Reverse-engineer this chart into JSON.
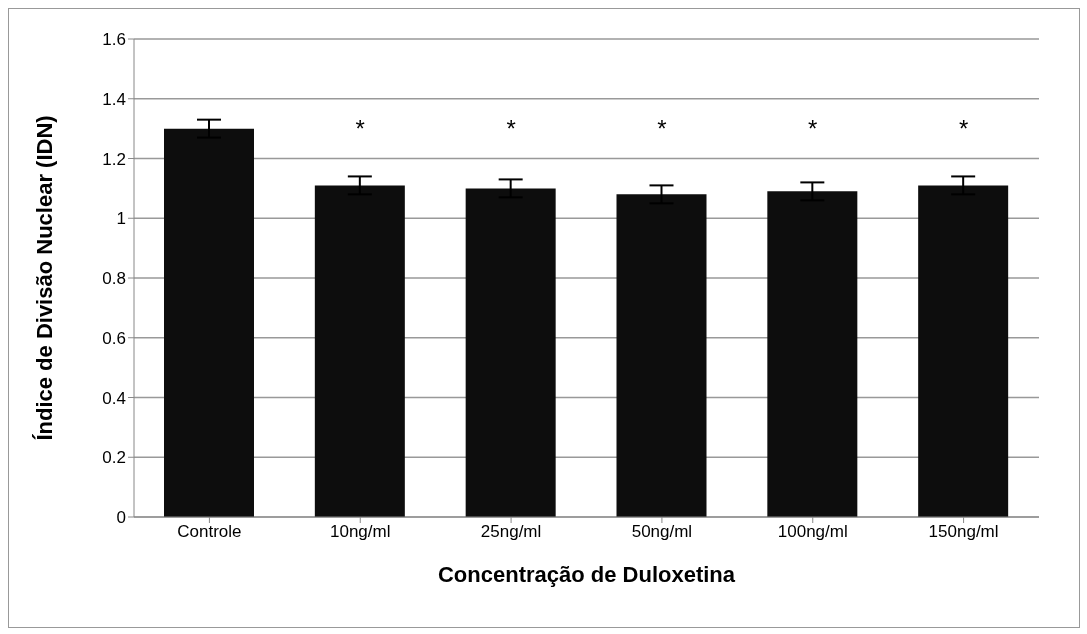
{
  "chart_data": {
    "type": "bar",
    "xlabel": "Concentração de Duloxetina",
    "ylabel": "Índice de Divisão Nuclear (IDN)",
    "categories": [
      "Controle",
      "10ng/ml",
      "25ng/ml",
      "50ng/ml",
      "100ng/ml",
      "150ng/ml"
    ],
    "values": [
      1.3,
      1.11,
      1.1,
      1.08,
      1.09,
      1.11
    ],
    "errors": [
      0.03,
      0.03,
      0.03,
      0.03,
      0.03,
      0.03
    ],
    "color": "#0d0d0d",
    "ylim": [
      0,
      1.6
    ],
    "yticks": [
      0,
      0.2,
      0.4,
      0.6,
      0.8,
      1,
      1.2,
      1.4,
      1.6
    ],
    "grid": "y",
    "legend": false,
    "annotations": [
      "*",
      "*",
      "*",
      "*",
      "*"
    ]
  }
}
